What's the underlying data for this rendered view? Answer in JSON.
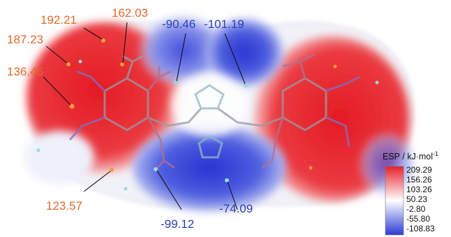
{
  "annotations": {
    "pos_192_21": "192.21",
    "pos_162_03": "162.03",
    "pos_187_23": "187.23",
    "pos_136_46": "136.46",
    "pos_123_57": "123.57",
    "neg_90_46": "-90.46",
    "neg_101_19": "-101.19",
    "neg_99_12": "-99.12",
    "neg_74_09": "-74.09"
  },
  "scale": {
    "title": "ESP / kJ·mol",
    "title_sup": "-1",
    "ticks": [
      "209.29",
      "156.26",
      "103.26",
      "50.23",
      "-2.80",
      "-55.80",
      "-108.83"
    ]
  },
  "colors": {
    "positive": "#e8202a",
    "negative": "#2d3bd6",
    "neutral": "#ffffff",
    "positive_label": "#e06a2a",
    "negative_label": "#2b3fb5"
  }
}
